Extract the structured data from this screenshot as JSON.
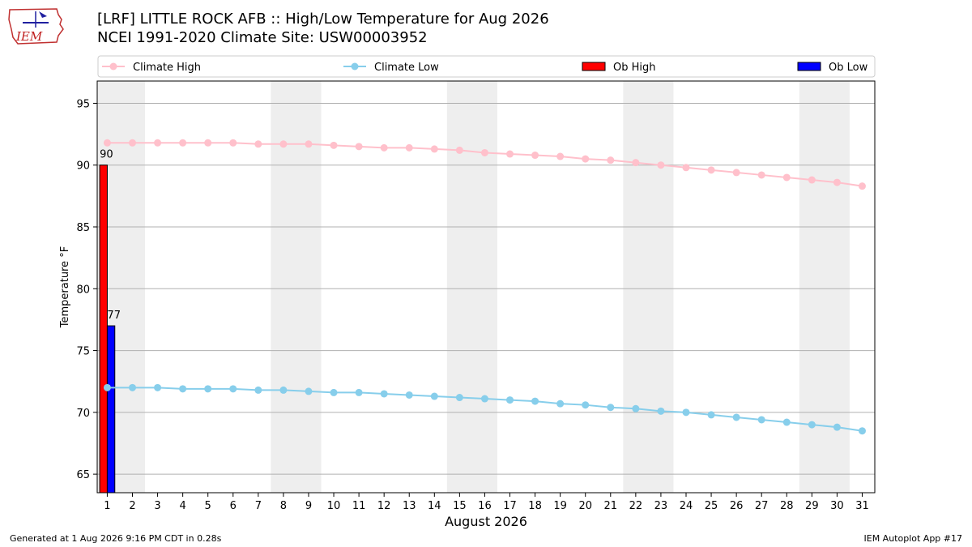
{
  "header": {
    "title_line1": "[LRF] LITTLE ROCK AFB :: High/Low Temperature for Aug 2026",
    "title_line2": "NCEI 1991-2020 Climate Site: USW00003952",
    "logo_text": "IEM"
  },
  "footer": {
    "generated": "Generated at 1 Aug 2026 9:16 PM CDT in 0.28s",
    "app": "IEM Autoplot App #17"
  },
  "colors": {
    "climate_high": "#ffc0cb",
    "climate_low": "#87ceeb",
    "ob_high": "#ff0000",
    "ob_low": "#0000ff",
    "weekend_shade": "#eeeeee",
    "grid": "#b0b0b0"
  },
  "chart_data": {
    "type": "bar",
    "xlabel": "August 2026",
    "ylabel": "Temperature °F",
    "xlim": [
      0.6,
      31.5
    ],
    "ylim": [
      63.5,
      96.8
    ],
    "grid": "horizontal",
    "legend_placement": "top",
    "x": [
      1,
      2,
      3,
      4,
      5,
      6,
      7,
      8,
      9,
      10,
      11,
      12,
      13,
      14,
      15,
      16,
      17,
      18,
      19,
      20,
      21,
      22,
      23,
      24,
      25,
      26,
      27,
      28,
      29,
      30,
      31
    ],
    "x_tick_labels": [
      "1",
      "2",
      "3",
      "4",
      "5",
      "6",
      "7",
      "8",
      "9",
      "10",
      "11",
      "12",
      "13",
      "14",
      "15",
      "16",
      "17",
      "18",
      "19",
      "20",
      "21",
      "22",
      "23",
      "24",
      "25",
      "26",
      "27",
      "28",
      "29",
      "30",
      "31"
    ],
    "y_ticks": [
      65,
      70,
      75,
      80,
      85,
      90,
      95
    ],
    "y_tick_labels": [
      "65",
      "70",
      "75",
      "80",
      "85",
      "90",
      "95"
    ],
    "weekend_days": [
      1,
      2,
      8,
      9,
      15,
      16,
      22,
      23,
      29,
      30
    ],
    "series": [
      {
        "name": "Climate High",
        "kind": "line",
        "values": [
          91.8,
          91.8,
          91.8,
          91.8,
          91.8,
          91.8,
          91.7,
          91.7,
          91.7,
          91.6,
          91.5,
          91.4,
          91.4,
          91.3,
          91.2,
          91.0,
          90.9,
          90.8,
          90.7,
          90.5,
          90.4,
          90.2,
          90.0,
          89.8,
          89.6,
          89.4,
          89.2,
          89.0,
          88.8,
          88.6,
          88.3
        ]
      },
      {
        "name": "Climate Low",
        "kind": "line",
        "values": [
          72.0,
          72.0,
          72.0,
          71.9,
          71.9,
          71.9,
          71.8,
          71.8,
          71.7,
          71.6,
          71.6,
          71.5,
          71.4,
          71.3,
          71.2,
          71.1,
          71.0,
          70.9,
          70.7,
          70.6,
          70.4,
          70.3,
          70.1,
          70.0,
          69.8,
          69.6,
          69.4,
          69.2,
          69.0,
          68.8,
          68.5
        ]
      },
      {
        "name": "Ob High",
        "kind": "bar",
        "points": [
          {
            "x": 1,
            "value": 90,
            "label": "90"
          }
        ]
      },
      {
        "name": "Ob Low",
        "kind": "bar",
        "points": [
          {
            "x": 1,
            "value": 77,
            "label": "77"
          }
        ]
      }
    ]
  }
}
